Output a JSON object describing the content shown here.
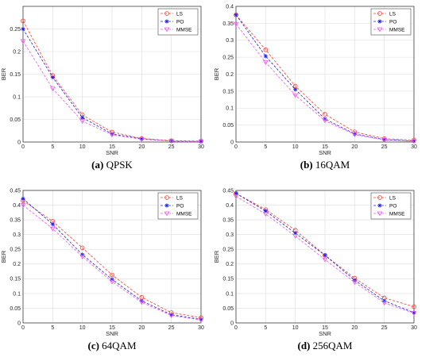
{
  "chart_data": [
    {
      "type": "line",
      "caption_letter": "(a)",
      "caption_text": " QPSK",
      "xlabel": "SNR",
      "ylabel": "BER",
      "x": [
        0,
        5,
        10,
        15,
        20,
        25,
        30
      ],
      "xlim": [
        0,
        30
      ],
      "ylim": [
        0,
        0.3
      ],
      "yticks": [
        0,
        0.05,
        0.1,
        0.15,
        0.2,
        0.25
      ],
      "xticks": [
        0,
        5,
        10,
        15,
        20,
        25,
        30
      ],
      "grid": true,
      "legend": "top-right",
      "series": [
        {
          "name": "LS",
          "color": "#ff3b2f",
          "marker": "circle",
          "values": [
            0.268,
            0.147,
            0.06,
            0.022,
            0.008,
            0.003,
            0.002
          ]
        },
        {
          "name": "PO",
          "color": "#1d1de8",
          "marker": "star",
          "values": [
            0.25,
            0.143,
            0.054,
            0.018,
            0.007,
            0.002,
            0.001
          ]
        },
        {
          "name": "MMSE",
          "color": "#ee55ee",
          "marker": "triangle-down",
          "values": [
            0.223,
            0.118,
            0.046,
            0.016,
            0.006,
            0.002,
            0.001
          ]
        }
      ]
    },
    {
      "type": "line",
      "caption_letter": "(b)",
      "caption_text": " 16QAM",
      "xlabel": "SNR",
      "ylabel": "BER",
      "x": [
        0,
        5,
        10,
        15,
        20,
        25,
        30
      ],
      "xlim": [
        0,
        30
      ],
      "ylim": [
        0,
        0.4
      ],
      "yticks": [
        0,
        0.05,
        0.1,
        0.15,
        0.2,
        0.25,
        0.3,
        0.35,
        0.4
      ],
      "xticks": [
        0,
        5,
        10,
        15,
        20,
        25,
        30
      ],
      "grid": true,
      "legend": "top-right",
      "series": [
        {
          "name": "LS",
          "color": "#ff3b2f",
          "marker": "circle",
          "values": [
            0.375,
            0.272,
            0.165,
            0.082,
            0.03,
            0.01,
            0.006
          ]
        },
        {
          "name": "PO",
          "color": "#1d1de8",
          "marker": "star",
          "values": [
            0.375,
            0.253,
            0.155,
            0.068,
            0.024,
            0.007,
            0.003
          ]
        },
        {
          "name": "MMSE",
          "color": "#ee55ee",
          "marker": "triangle-down",
          "values": [
            0.348,
            0.235,
            0.138,
            0.063,
            0.022,
            0.006,
            0.002
          ]
        }
      ]
    },
    {
      "type": "line",
      "caption_letter": "(c)",
      "caption_text": " 64QAM",
      "xlabel": "SNR",
      "ylabel": "BER",
      "x": [
        0,
        5,
        10,
        15,
        20,
        25,
        30
      ],
      "xlim": [
        0,
        30
      ],
      "ylim": [
        0,
        0.45
      ],
      "yticks": [
        0,
        0.05,
        0.1,
        0.15,
        0.2,
        0.25,
        0.3,
        0.35,
        0.4,
        0.45
      ],
      "xticks": [
        0,
        5,
        10,
        15,
        20,
        25,
        30
      ],
      "grid": true,
      "legend": "top-right",
      "series": [
        {
          "name": "LS",
          "color": "#ff3b2f",
          "marker": "circle",
          "values": [
            0.415,
            0.345,
            0.255,
            0.163,
            0.087,
            0.035,
            0.018
          ]
        },
        {
          "name": "PO",
          "color": "#1d1de8",
          "marker": "star",
          "values": [
            0.422,
            0.335,
            0.232,
            0.148,
            0.075,
            0.028,
            0.012
          ]
        },
        {
          "name": "MMSE",
          "color": "#ee55ee",
          "marker": "triangle-down",
          "values": [
            0.4,
            0.32,
            0.225,
            0.14,
            0.07,
            0.025,
            0.01
          ]
        }
      ]
    },
    {
      "type": "line",
      "caption_letter": "(d)",
      "caption_text": " 256QAM",
      "xlabel": "SNR",
      "ylabel": "BER",
      "x": [
        0,
        5,
        10,
        15,
        20,
        25,
        30
      ],
      "xlim": [
        0,
        30
      ],
      "ylim": [
        0,
        0.45
      ],
      "yticks": [
        0,
        0.05,
        0.1,
        0.15,
        0.2,
        0.25,
        0.3,
        0.35,
        0.4,
        0.45
      ],
      "xticks": [
        0,
        5,
        10,
        15,
        20,
        25,
        30
      ],
      "grid": true,
      "legend": "top-right",
      "series": [
        {
          "name": "LS",
          "color": "#ff3b2f",
          "marker": "circle",
          "values": [
            0.44,
            0.385,
            0.315,
            0.23,
            0.152,
            0.085,
            0.055
          ]
        },
        {
          "name": "PO",
          "color": "#1d1de8",
          "marker": "star",
          "values": [
            0.44,
            0.38,
            0.305,
            0.23,
            0.145,
            0.075,
            0.035
          ]
        },
        {
          "name": "MMSE",
          "color": "#ee55ee",
          "marker": "triangle-down",
          "values": [
            0.43,
            0.37,
            0.295,
            0.215,
            0.138,
            0.068,
            0.033
          ]
        }
      ]
    }
  ]
}
